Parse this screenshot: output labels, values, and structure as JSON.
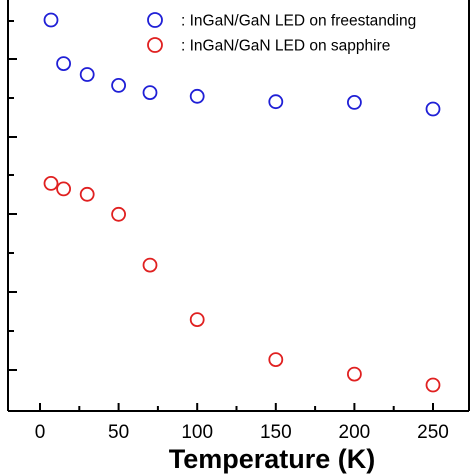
{
  "chart_data": {
    "type": "scatter",
    "xlabel": "Temperature (K)",
    "ylabel": "",
    "xlim": [
      -20,
      270
    ],
    "x_ticks": [
      0,
      50,
      100,
      150,
      200,
      250
    ],
    "tick_labels": [
      "0",
      "50",
      "100",
      "150",
      "200",
      "250"
    ],
    "grid": false,
    "legend_position": "top-right",
    "series": [
      {
        "name": ": InGaN/GaN LED on freestanding",
        "color": "#1f1fd6",
        "marker": "open-circle",
        "x": [
          7,
          15,
          30,
          50,
          70,
          100,
          150,
          200,
          250
        ],
        "y": [
          0.98,
          0.86,
          0.83,
          0.8,
          0.78,
          0.77,
          0.755,
          0.753,
          0.735
        ]
      },
      {
        "name": ": InGaN/GaN LED on sapphire",
        "color": "#e02020",
        "marker": "open-circle",
        "x": [
          7,
          15,
          30,
          50,
          70,
          100,
          150,
          200,
          250
        ],
        "y": [
          0.53,
          0.515,
          0.5,
          0.445,
          0.305,
          0.155,
          0.045,
          0.005,
          -0.025
        ]
      }
    ]
  }
}
